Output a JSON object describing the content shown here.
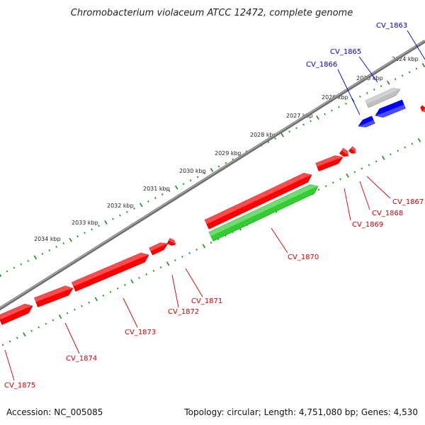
{
  "title": "Chromobacterium violaceum ATCC 12472, complete genome",
  "footer": {
    "accession": "Accession: NC_005085",
    "summary": "Topology: circular; Length: 4,751,080 bp; Genes: 4,530"
  },
  "colors": {
    "forward_gene": "#ff0000",
    "reverse_gene": "#0000ff",
    "rna_gene": "#33cc33",
    "other_feature": "#c0c0c0",
    "backbone": "#808080",
    "tick": "#1a8a1a",
    "label_forward": "#cc0000",
    "label_reverse": "#0000cc"
  },
  "scale_labels": [
    "2024 kbp",
    "2025 kbp",
    "2026 kbp",
    "2027 kbp",
    "2028 kbp",
    "2029 kbp",
    "2030 kbp",
    "2031 kbp",
    "2032 kbp",
    "2033 kbp",
    "2034 kbp"
  ],
  "gene_labels": [
    {
      "name": "CV_1863",
      "strand": "reverse"
    },
    {
      "name": "CV_1865",
      "strand": "reverse"
    },
    {
      "name": "CV_1866",
      "strand": "reverse"
    },
    {
      "name": "CV_1867",
      "strand": "forward"
    },
    {
      "name": "CV_1868",
      "strand": "forward"
    },
    {
      "name": "CV_1869",
      "strand": "forward"
    },
    {
      "name": "CV_1870",
      "strand": "forward"
    },
    {
      "name": "CV_1871",
      "strand": "forward"
    },
    {
      "name": "CV_1872",
      "strand": "forward"
    },
    {
      "name": "CV_1873",
      "strand": "forward"
    },
    {
      "name": "CV_1874",
      "strand": "forward"
    },
    {
      "name": "CV_1875",
      "strand": "forward"
    }
  ]
}
